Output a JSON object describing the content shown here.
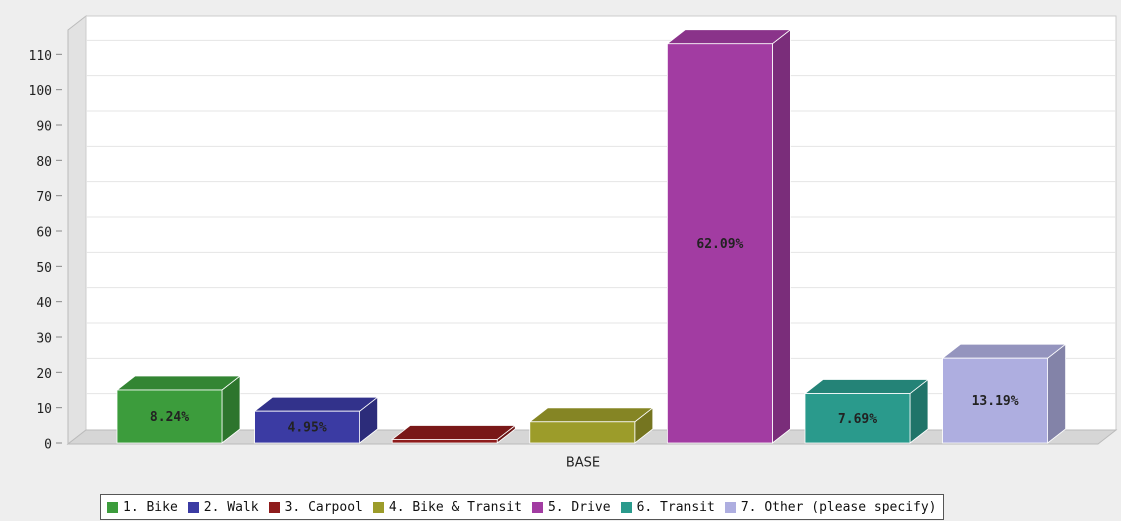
{
  "chart_data": {
    "type": "bar3d",
    "categories": [
      "BASE"
    ],
    "ylim": [
      0,
      120
    ],
    "yticks": [
      0,
      10,
      20,
      30,
      40,
      50,
      60,
      70,
      80,
      90,
      100,
      110
    ],
    "grid": true,
    "legend": "bottom",
    "series": [
      {
        "name": "1. Bike",
        "color": "#3c9c3c",
        "values": [
          15
        ],
        "share_label": "8.24%"
      },
      {
        "name": "2. Walk",
        "color": "#3b3ba3",
        "values": [
          9
        ],
        "share_label": "4.95%"
      },
      {
        "name": "3. Carpool",
        "color": "#8e1c1c",
        "values": [
          1
        ]
      },
      {
        "name": "4. Bike & Transit",
        "color": "#9c9c2a",
        "values": [
          6
        ]
      },
      {
        "name": "5. Drive",
        "color": "#a23ca2",
        "values": [
          113
        ],
        "share_label": "62.09%"
      },
      {
        "name": "6. Transit",
        "color": "#2a9a8c",
        "values": [
          14
        ],
        "share_label": "7.69%"
      },
      {
        "name": "7. Other (please specify)",
        "color": "#aeaee0",
        "values": [
          24
        ],
        "share_label": "13.19%"
      }
    ]
  }
}
